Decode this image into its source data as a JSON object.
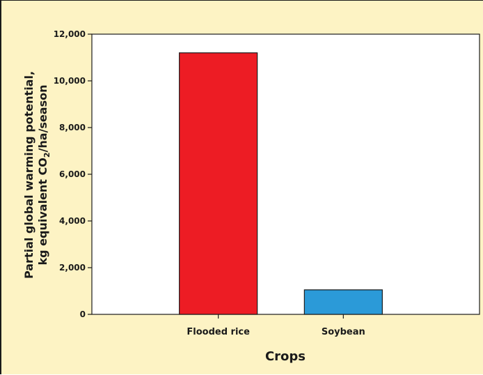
{
  "chart_data": {
    "type": "bar",
    "categories": [
      "Flooded rice",
      "Soybean"
    ],
    "values": [
      11200,
      1050
    ],
    "colors": [
      "#ed1c24",
      "#2b9ad8"
    ],
    "title": "",
    "xlabel": "Crops",
    "ylabel_line1": "Partial global warming potential,",
    "ylabel_line2_prefix": "kg equivalent CO",
    "ylabel_line2_subscript": "2",
    "ylabel_line2_suffix": "/ha/season",
    "ylim": [
      0,
      12000
    ],
    "yticks": [
      0,
      2000,
      4000,
      6000,
      8000,
      10000,
      12000
    ],
    "ytick_labels": [
      "0",
      "2,000",
      "4,000",
      "6,000",
      "8,000",
      "10,000",
      "12,000"
    ],
    "grid": false,
    "background": "#fdf3c4",
    "plot_background": "#ffffff"
  }
}
